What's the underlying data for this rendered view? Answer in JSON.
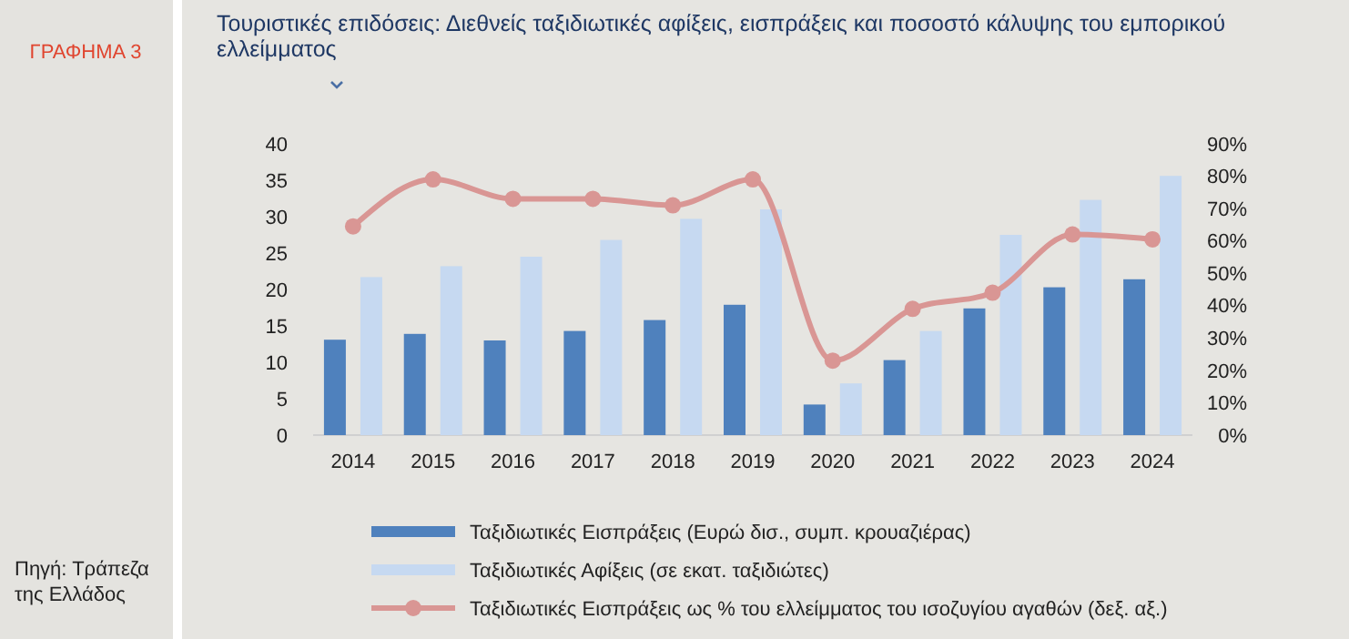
{
  "chart_data": {
    "type": "bar",
    "title": "Τουριστικές  επιδόσεις: Διεθνείς ταξιδιωτικές αφίξεις, εισπράξεις και ποσοστό κάλυψης του εμπορικού ελλείμματος",
    "categories": [
      "2014",
      "2015",
      "2016",
      "2017",
      "2018",
      "2019",
      "2020",
      "2021",
      "2022",
      "2023",
      "2024"
    ],
    "series": [
      {
        "name": "Ταξιδιωτικές Εισπράξεις (Ευρώ δισ., συμπ. κρουαζιέρας)",
        "color": "#4f81bd",
        "values": [
          13.1,
          13.9,
          13.0,
          14.3,
          15.8,
          17.9,
          4.2,
          10.3,
          17.4,
          20.3,
          21.4
        ]
      },
      {
        "name": "Ταξιδιωτικές Αφίξεις (σε εκατ. ταξιδιώτες)",
        "color": "#c6d9f1",
        "values": [
          21.7,
          23.2,
          24.5,
          26.8,
          29.7,
          31.0,
          7.1,
          14.3,
          27.5,
          32.3,
          35.6
        ]
      },
      {
        "name": "Ταξιδιωτικές Εισπράξεις ως % του ελλείμματος του ισοζυγίου αγαθών (δεξ. αξ.)",
        "type": "line",
        "axis": "y2",
        "color": "#d99694",
        "marker": "circle",
        "values": [
          64.5,
          79,
          73,
          73,
          71,
          79,
          23,
          39,
          44,
          62,
          60.5
        ]
      }
    ],
    "ylim": [
      0,
      40
    ],
    "yticks": [
      0,
      5,
      10,
      15,
      20,
      25,
      30,
      35,
      40
    ],
    "y2lim": [
      0,
      90
    ],
    "y2ticks": [
      {
        "value": 0,
        "label": "0%"
      },
      {
        "value": 10,
        "label": "10%"
      },
      {
        "value": 20,
        "label": "20%"
      },
      {
        "value": 30,
        "label": "30%"
      },
      {
        "value": 40,
        "label": "40%"
      },
      {
        "value": 50,
        "label": "50%"
      },
      {
        "value": 60,
        "label": "60%"
      },
      {
        "value": 70,
        "label": "70%"
      },
      {
        "value": 80,
        "label": "80%"
      },
      {
        "value": 90,
        "label": "90%"
      }
    ],
    "grid": false,
    "legend": "bottom",
    "annotations": [
      "ΓΡΑΦΗΜΑ 3",
      "Πηγή: Τράπεζα της Ελλάδος"
    ]
  }
}
